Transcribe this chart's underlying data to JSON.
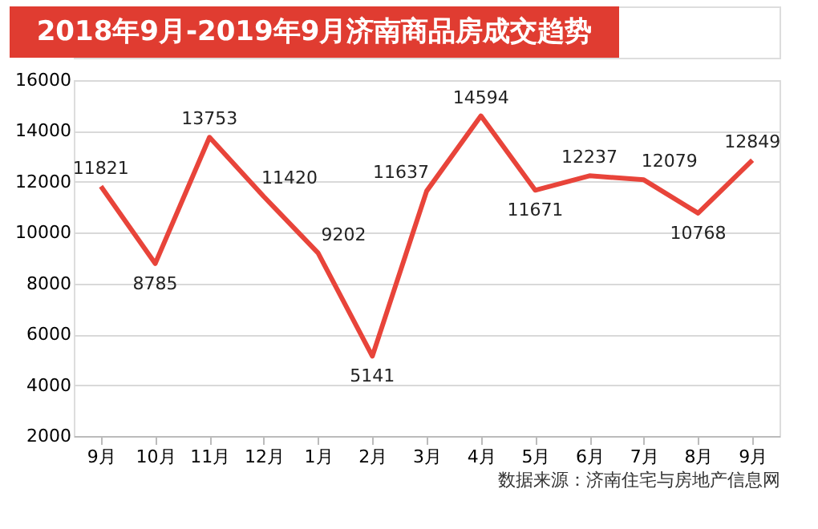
{
  "chart_data": {
    "type": "line",
    "title": "2018年9月-2019年9月济南商品房成交趋势",
    "categories": [
      "9月",
      "10月",
      "11月",
      "12月",
      "1月",
      "2月",
      "3月",
      "4月",
      "5月",
      "6月",
      "7月",
      "8月",
      "9月"
    ],
    "series": [
      {
        "color": "#e8443a",
        "values": [
          11821,
          8785,
          13753,
          11420,
          9202,
          5141,
          11637,
          14594,
          11671,
          12237,
          12079,
          10768,
          12849
        ]
      }
    ],
    "ylim": [
      2000,
      16000
    ],
    "yticks": [
      2000,
      4000,
      6000,
      8000,
      10000,
      12000,
      14000,
      16000
    ],
    "grid": "y",
    "data_labels": true,
    "marker": "none",
    "line_style": "solid",
    "annotations": [
      "数据来源：济南住宅与房地产信息网"
    ]
  }
}
